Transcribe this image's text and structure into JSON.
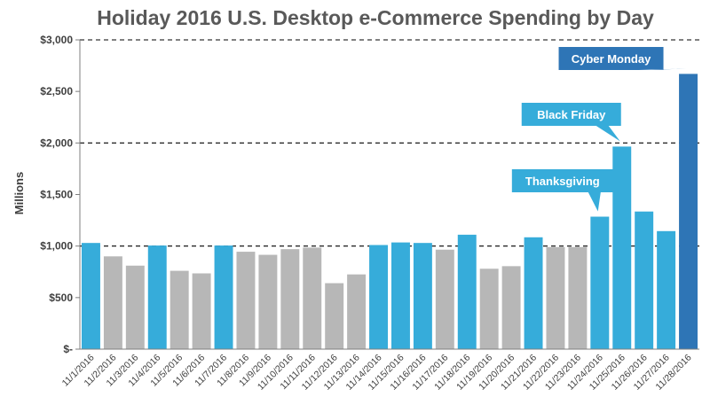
{
  "chart_data": {
    "type": "bar",
    "title": "Holiday 2016 U.S. Desktop e-Commerce Spending by Day",
    "ylabel": "Millions",
    "xlabel": "",
    "ylim": [
      0,
      3000
    ],
    "yticks": [
      0,
      500,
      1000,
      1500,
      2000,
      2500,
      3000
    ],
    "ytick_labels": [
      "$-",
      "$500",
      "$1,000",
      "$1,500",
      "$2,000",
      "$2,500",
      "$3,000"
    ],
    "gridlines": [
      1000,
      2000,
      3000
    ],
    "grid_style": "dashed",
    "categories": [
      "11/1/2016",
      "11/2/2016",
      "11/3/2016",
      "11/4/2016",
      "11/5/2016",
      "11/6/2016",
      "11/7/2016",
      "11/8/2016",
      "11/9/2016",
      "11/10/2016",
      "11/11/2016",
      "11/12/2016",
      "11/13/2016",
      "11/14/2016",
      "11/15/2016",
      "11/16/2016",
      "11/17/2016",
      "11/18/2016",
      "11/19/2016",
      "11/20/2016",
      "11/21/2016",
      "11/22/2016",
      "11/23/2016",
      "11/24/2016",
      "11/25/2016",
      "11/26/2016",
      "11/27/2016",
      "11/28/2016"
    ],
    "values": [
      1030,
      900,
      810,
      1005,
      760,
      735,
      1005,
      945,
      915,
      970,
      985,
      640,
      725,
      1010,
      1035,
      1030,
      965,
      1110,
      780,
      805,
      1085,
      990,
      990,
      1285,
      1965,
      1335,
      1145,
      2670
    ],
    "colors": {
      "highlight": "#36ACDA",
      "regular": "#B7B7B7",
      "cyber_monday": "#2E75B6",
      "axis": "#7F7F7F",
      "grid": "#000000"
    },
    "highlighted_indices": [
      0,
      3,
      6,
      13,
      14,
      15,
      17,
      20,
      23,
      24,
      25,
      26
    ],
    "emphasis_index": 27,
    "annotations": [
      {
        "text": "Thanksgiving",
        "target_index": 23,
        "color": "#36ACDA"
      },
      {
        "text": "Black Friday",
        "target_index": 24,
        "color": "#36ACDA"
      },
      {
        "text": "Cyber Monday",
        "target_index": 27,
        "color": "#2E75B6"
      }
    ]
  }
}
